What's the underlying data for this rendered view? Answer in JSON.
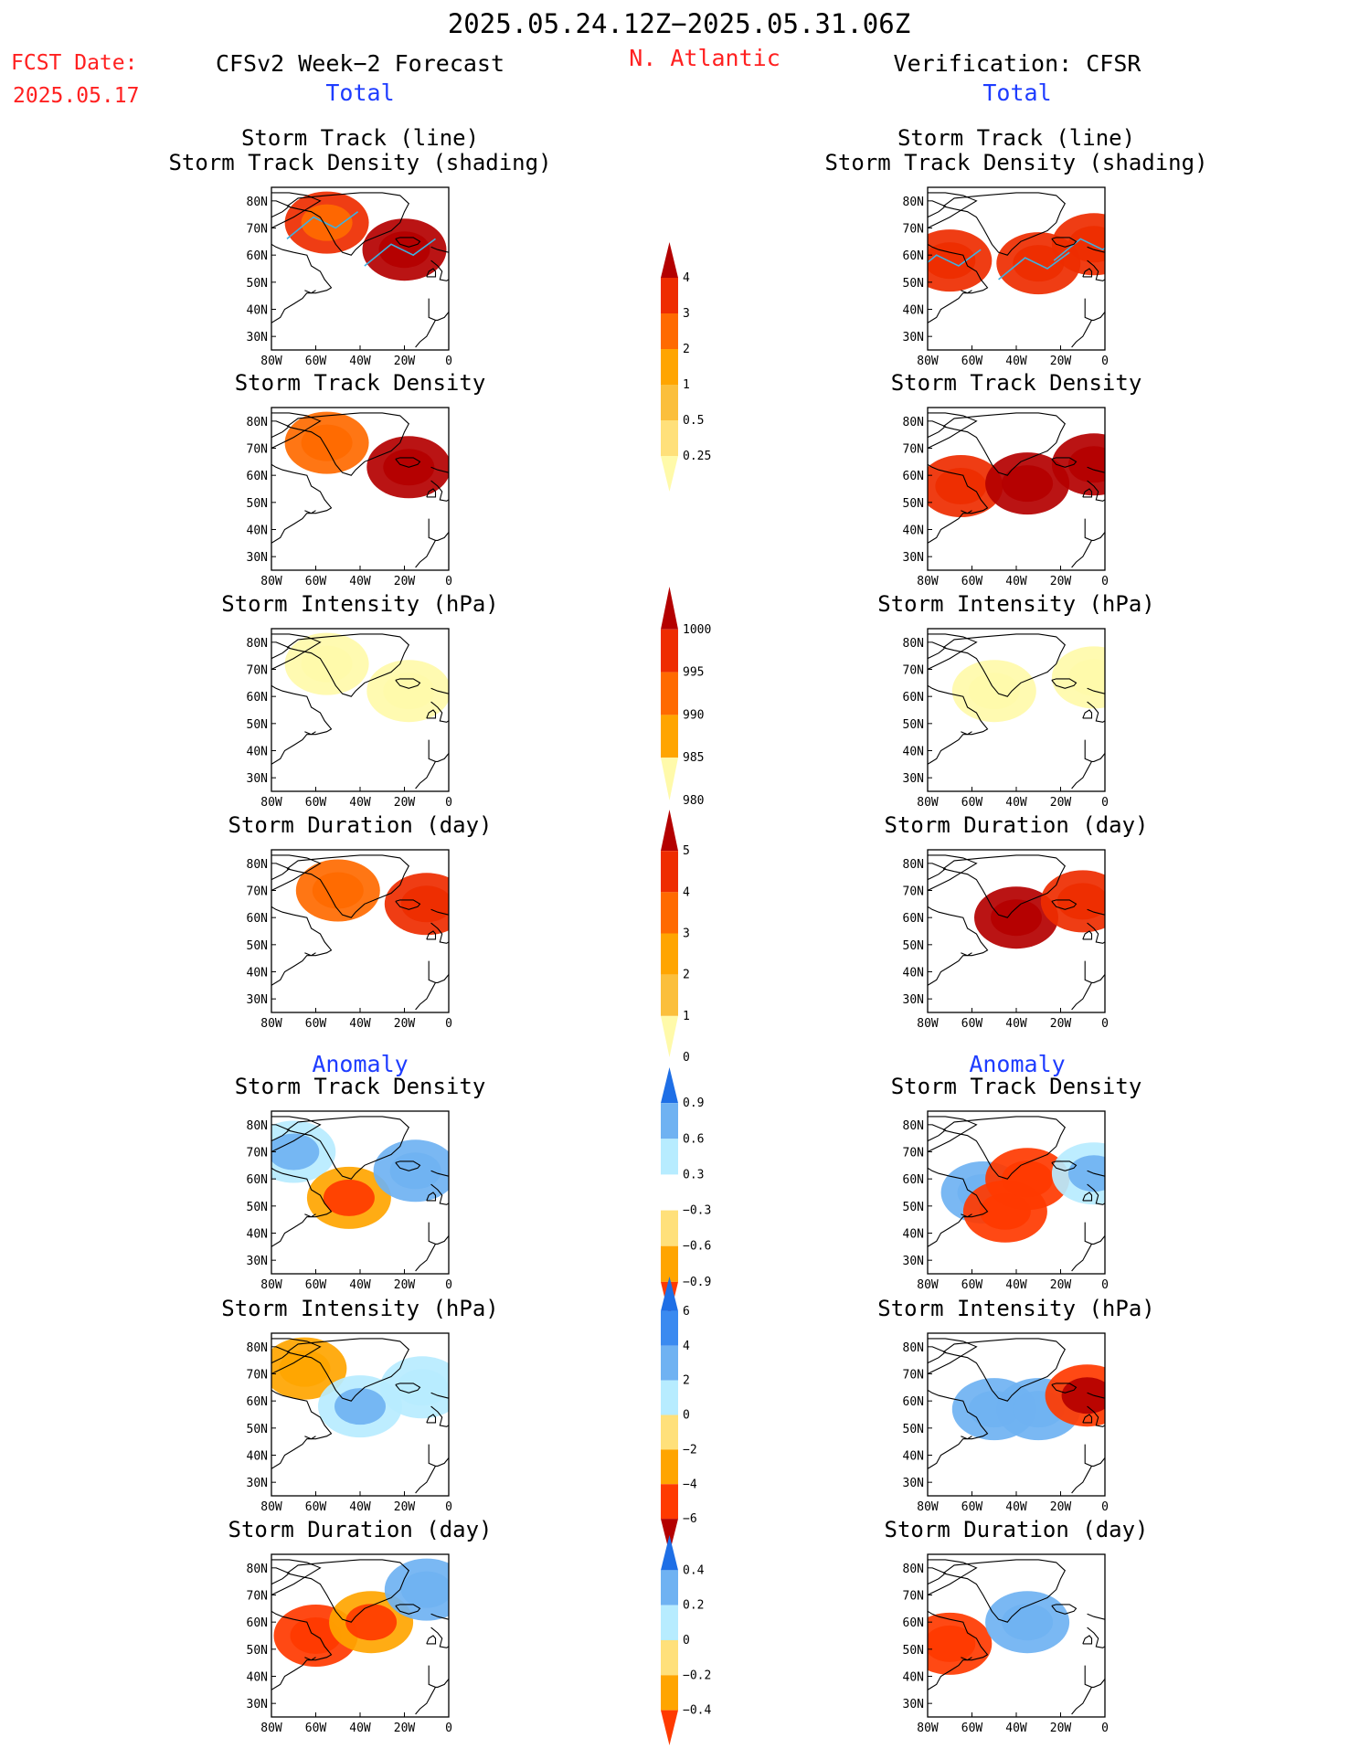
{
  "header": {
    "period": "2025.05.24.12Z−2025.05.31.06Z",
    "fcst_label": "FCST Date:",
    "fcst_date": "2025.05.17",
    "left_title": "CFSv2 Week−2 Forecast",
    "region": "N. Atlantic",
    "right_title": "Verification: CFSR",
    "section_total": "Total",
    "section_anomaly": "Anomaly"
  },
  "colors": {
    "red_text": "#ff2020",
    "blue_text": "#1e3cff",
    "track_line": "#3fb0e0",
    "land_outline": "#000000"
  },
  "panel_titles": {
    "track_line": "Storm Track (line)",
    "track_shading": "Storm Track Density (shading)",
    "density": "Storm Track Density",
    "intensity": "Storm Intensity (hPa)",
    "duration": "Storm Duration (day)"
  },
  "axes": {
    "lon_labels": [
      "80W",
      "60W",
      "40W",
      "20W",
      "0"
    ],
    "lat_labels": [
      "80N",
      "70N",
      "60N",
      "50N",
      "40N",
      "30N"
    ],
    "lon_range": [
      -80,
      0
    ],
    "lat_range": [
      25,
      85
    ]
  },
  "colorbars": [
    {
      "id": "track_density_total",
      "labels": [
        "0.25",
        "0.5",
        "1",
        "2",
        "3",
        "4"
      ],
      "colors": [
        "#fffaaa",
        "#ffe07a",
        "#fbbf3c",
        "#ffa500",
        "#ff6a00",
        "#ee2c00",
        "#b40000"
      ]
    },
    {
      "id": "intensity_total",
      "labels": [
        "1000",
        "995",
        "990",
        "985",
        "980"
      ],
      "colors": [
        "#fffaaa",
        "#ffa500",
        "#ff6a00",
        "#ee2c00",
        "#b40000"
      ]
    },
    {
      "id": "duration_total",
      "labels": [
        "0",
        "1",
        "2",
        "3",
        "4",
        "5"
      ],
      "colors": [
        "#fffaaa",
        "#fbbf3c",
        "#ffa500",
        "#ff6a00",
        "#ee2c00",
        "#b40000"
      ]
    },
    {
      "id": "density_anomaly",
      "labels": [
        "0.9",
        "0.6",
        "0.3",
        "−0.3",
        "−0.6",
        "−0.9"
      ],
      "colors": [
        "#ff3a00",
        "#ffa500",
        "#ffe07a",
        "#ffffff",
        "#b7ecff",
        "#6fb2f2",
        "#1e6fe6"
      ]
    },
    {
      "id": "intensity_anomaly",
      "labels": [
        "6",
        "4",
        "2",
        "0",
        "−2",
        "−4",
        "−6"
      ],
      "colors": [
        "#b40000",
        "#ff3a00",
        "#ffa500",
        "#ffe07a",
        "#b7ecff",
        "#6fb2f2",
        "#3a8af0",
        "#1e6fe6"
      ]
    },
    {
      "id": "duration_anomaly",
      "labels": [
        "0.4",
        "0.2",
        "0",
        "−0.2",
        "−0.4"
      ],
      "colors": [
        "#ff3a00",
        "#ffa500",
        "#ffe07a",
        "#b7ecff",
        "#6fb2f2",
        "#1e6fe6"
      ]
    }
  ],
  "chart_data": {
    "type": "heatmap",
    "x_axis": "longitude",
    "y_axis": "latitude",
    "xlim": [
      -80,
      0
    ],
    "ylim": [
      25,
      85
    ],
    "rows": [
      {
        "title_key": "track_line",
        "forecast": [
          [
            -55,
            72,
            3,
            2.5
          ],
          [
            -20,
            62,
            4,
            4.5
          ]
        ],
        "verification": [
          [
            -70,
            58,
            3,
            3
          ],
          [
            -30,
            57,
            3,
            3
          ],
          [
            -5,
            64,
            3,
            3
          ]
        ]
      },
      {
        "title_key": "density",
        "forecast": [
          [
            -55,
            72,
            2,
            2
          ],
          [
            -18,
            63,
            4,
            4
          ]
        ],
        "verification": [
          [
            -65,
            56,
            3,
            3
          ],
          [
            -35,
            57,
            4,
            4
          ],
          [
            -5,
            64,
            4,
            4
          ]
        ]
      },
      {
        "title_key": "intensity",
        "forecast": [
          [
            -55,
            72,
            1,
            1
          ],
          [
            -18,
            62,
            2,
            2
          ]
        ],
        "verification": [
          [
            -50,
            62,
            2,
            2
          ],
          [
            -5,
            67,
            4,
            4
          ]
        ]
      },
      {
        "title_key": "duration",
        "forecast": [
          [
            -50,
            70,
            2,
            2
          ],
          [
            -10,
            65,
            3,
            3
          ]
        ],
        "verification": [
          [
            -40,
            60,
            4,
            4
          ],
          [
            -10,
            66,
            3,
            3
          ]
        ]
      },
      {
        "title_key": "density",
        "forecast": [
          [
            -70,
            70,
            0.6,
            0.9
          ],
          [
            -45,
            53,
            -0.6,
            -0.9
          ],
          [
            -15,
            63,
            0.9,
            0.9
          ]
        ],
        "verification": [
          [
            -55,
            55,
            0.9,
            0.9
          ],
          [
            -45,
            48,
            -0.9,
            -0.9
          ],
          [
            -35,
            60,
            -0.9,
            -0.9
          ],
          [
            -5,
            62,
            0.6,
            0.9
          ]
        ]
      },
      {
        "title_key": "intensity",
        "forecast": [
          [
            -65,
            72,
            -2,
            -2
          ],
          [
            -40,
            58,
            2,
            4
          ],
          [
            -12,
            65,
            2,
            2
          ]
        ],
        "verification": [
          [
            -50,
            57,
            4,
            4
          ],
          [
            -30,
            57,
            4,
            4
          ],
          [
            -8,
            62,
            -4,
            -6
          ]
        ]
      },
      {
        "title_key": "duration",
        "forecast": [
          [
            -60,
            55,
            -0.4,
            -0.4
          ],
          [
            -35,
            60,
            -0.2,
            -0.4
          ],
          [
            -10,
            72,
            0.4,
            0.4
          ]
        ],
        "verification": [
          [
            -70,
            52,
            -0.4,
            -0.4
          ],
          [
            -35,
            60,
            0.4,
            0.4
          ]
        ]
      }
    ]
  }
}
